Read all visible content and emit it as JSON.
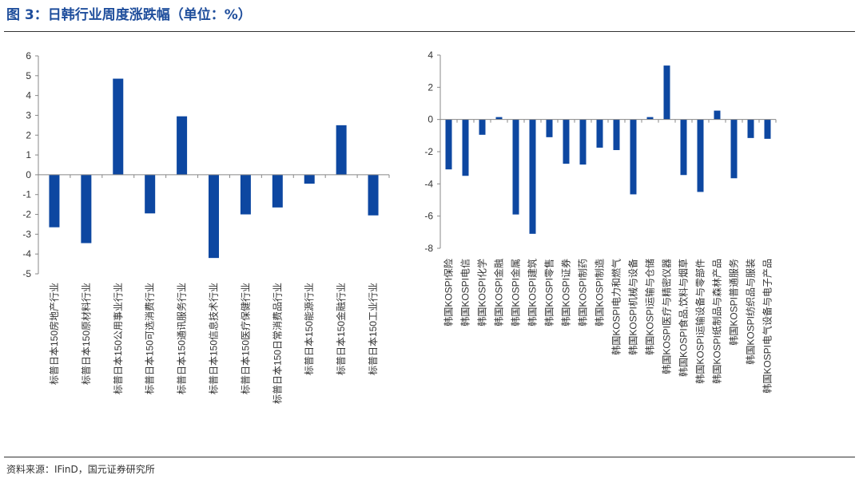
{
  "title": "图 3：日韩行业周度涨跌幅（单位：%）",
  "source": "资料来源：IFinD，国元证券研究所",
  "colors": {
    "bar": "#0d47a1",
    "title": "#1f4e9c",
    "axis": "#888888"
  },
  "chart_data": [
    {
      "type": "bar",
      "ylim": [
        -5,
        6
      ],
      "ytick_step": 1,
      "categories": [
        "标普日本150房地产行业",
        "标普日本150原材料行业",
        "标普日本150公用事业行业",
        "标普日本150可选消费行业",
        "标普日本150通讯服务行业",
        "标普日本150信息技术行业",
        "标普日本150医疗保健行业",
        "标普日本150日常消费品行业",
        "标普日本150能源行业",
        "标普日本150金融行业",
        "标普日本150工业行业"
      ],
      "values": [
        -2.65,
        -3.45,
        4.85,
        -1.95,
        2.95,
        -4.2,
        -2.0,
        -1.65,
        -0.45,
        2.5,
        -2.05
      ]
    },
    {
      "type": "bar",
      "ylim": [
        -8,
        4
      ],
      "ytick_step": 2,
      "categories": [
        "韩国KOSPI保险",
        "韩国KOSPI电信",
        "韩国KOSPI化学",
        "韩国KOSPI金融",
        "韩国KOSPI金属",
        "韩国KOSPI建筑",
        "韩国KOSPI零售",
        "韩国KOSPI证券",
        "韩国KOSPI制药",
        "韩国KOSPI制造",
        "韩国KOSPI电力和燃气",
        "韩国KOSPI机械与设备",
        "韩国KOSPI运输与仓储",
        "韩国KOSPI医疗与精密仪器",
        "韩国KOSPI食品,饮料与烟草",
        "韩国KOSPI运输设备与零部件",
        "韩国KOSPI纸制品与森林产品",
        "韩国KOSPI普通服务",
        "韩国KOSPI纺织品与服装",
        "韩国KOSPI电气设备与电子产品"
      ],
      "values": [
        -3.1,
        -3.5,
        -0.95,
        0.15,
        -5.9,
        -7.1,
        -1.1,
        -2.75,
        -2.8,
        -1.75,
        -1.9,
        -4.65,
        0.15,
        3.35,
        -3.45,
        -4.5,
        0.55,
        -3.65,
        -1.15,
        -1.2
      ]
    }
  ]
}
